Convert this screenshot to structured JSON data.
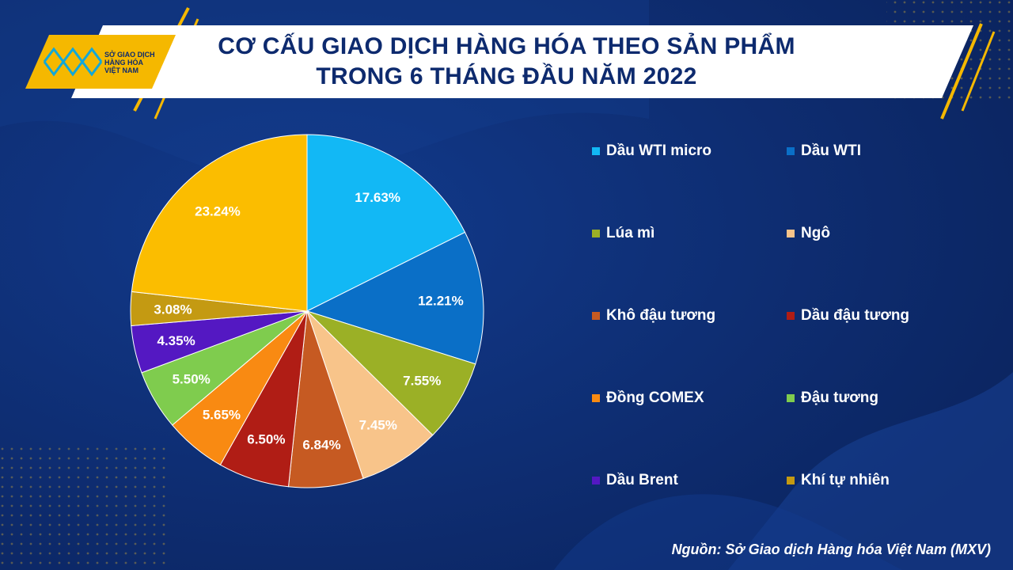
{
  "logo": {
    "lines": [
      "SỞ GIAO DỊCH",
      "HÀNG HÓA",
      "VIỆT NAM"
    ]
  },
  "header": {
    "title_line1": "CƠ CẤU GIAO DỊCH HÀNG HÓA THEO SẢN PHẨM",
    "title_line2": "TRONG 6 THÁNG ĐẦU NĂM 2022"
  },
  "source": "Nguồn: Sở Giao dịch Hàng hóa Việt Nam (MXV)",
  "chart_data": {
    "type": "pie",
    "title": "CƠ CẤU GIAO DỊCH HÀNG HÓA THEO SẢN PHẨM TRONG 6 THÁNG ĐẦU NĂM 2022",
    "legend_position": "right",
    "categories": [
      "Dầu WTI micro",
      "Dầu WTI",
      "Lúa mì",
      "Ngô",
      "Khô đậu tương",
      "Dầu đậu tương",
      "Đồng COMEX",
      "Đậu tương",
      "Dầu Brent",
      "Khí tự nhiên",
      ""
    ],
    "values": [
      17.63,
      12.21,
      7.55,
      7.45,
      6.84,
      6.5,
      5.65,
      5.5,
      4.35,
      3.08,
      23.24
    ],
    "labels": [
      "17.63%",
      "12.21%",
      "7.55%",
      "7.45%",
      "6.84%",
      "6.50%",
      "5.65%",
      "5.50%",
      "4.35%",
      "3.08%",
      "23.24%"
    ],
    "colors": [
      "#12b8f5",
      "#0a6fc7",
      "#9bb026",
      "#f8c48a",
      "#c65a22",
      "#b01d15",
      "#f98a12",
      "#7fcc4e",
      "#5418c2",
      "#c49a12",
      "#fbbd00"
    ]
  }
}
